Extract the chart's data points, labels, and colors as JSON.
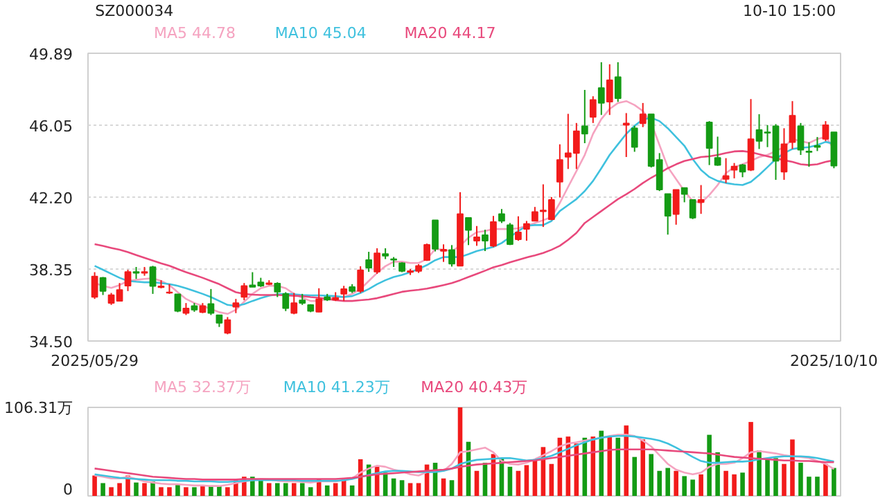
{
  "chart_data": [
    {
      "type": "candlestick",
      "title": "SZ000034",
      "annotations": [
        "10-10 15:00"
      ],
      "categories": [
        "2025/05/29",
        null,
        null,
        null,
        null,
        null,
        null,
        null,
        null,
        null,
        null,
        null,
        null,
        null,
        null,
        null,
        null,
        null,
        null,
        null,
        null,
        null,
        null,
        null,
        null,
        null,
        null,
        null,
        null,
        null,
        null,
        null,
        null,
        null,
        null,
        null,
        null,
        null,
        null,
        null,
        null,
        null,
        null,
        null,
        null,
        null,
        null,
        null,
        null,
        null,
        null,
        null,
        null,
        null,
        null,
        null,
        null,
        null,
        null,
        null,
        null,
        null,
        null,
        null,
        null,
        null,
        null,
        null,
        null,
        null,
        null,
        null,
        null,
        null,
        null,
        null,
        null,
        null,
        null,
        null,
        null,
        null,
        null,
        null,
        null,
        null,
        null,
        null,
        null,
        "2025/10/10"
      ],
      "ohlc": [
        [
          36.85,
          38.18,
          36.75,
          37.96
        ],
        [
          37.88,
          37.92,
          36.96,
          37.17
        ],
        [
          36.53,
          37.07,
          36.43,
          36.96
        ],
        [
          36.64,
          37.6,
          36.64,
          37.24
        ],
        [
          37.45,
          38.31,
          37.17,
          38.2
        ],
        [
          38.2,
          38.46,
          37.82,
          38.14
        ],
        [
          38.14,
          38.46,
          37.99,
          38.2
        ],
        [
          38.46,
          38.52,
          37.02,
          37.43
        ],
        [
          37.37,
          37.75,
          37.32,
          37.43
        ],
        [
          37.07,
          37.54,
          37.02,
          37.11
        ],
        [
          37.0,
          37.0,
          36.04,
          36.1
        ],
        [
          35.99,
          36.53,
          35.89,
          36.25
        ],
        [
          36.38,
          36.53,
          36.06,
          36.17
        ],
        [
          36.04,
          36.53,
          35.99,
          36.38
        ],
        [
          36.49,
          37.28,
          35.89,
          35.99
        ],
        [
          35.89,
          35.89,
          35.25,
          35.46
        ],
        [
          34.93,
          35.78,
          34.86,
          35.63
        ],
        [
          36.32,
          36.75,
          35.99,
          36.53
        ],
        [
          36.85,
          37.6,
          36.68,
          37.45
        ],
        [
          37.49,
          38.18,
          37.39,
          37.39
        ],
        [
          37.64,
          37.88,
          37.39,
          37.45
        ],
        [
          37.54,
          37.75,
          37.49,
          37.6
        ],
        [
          37.58,
          37.64,
          36.85,
          37.13
        ],
        [
          37.02,
          37.11,
          36.1,
          36.25
        ],
        [
          35.99,
          37.07,
          35.93,
          36.53
        ],
        [
          36.68,
          37.02,
          36.43,
          36.53
        ],
        [
          36.43,
          36.47,
          36.04,
          36.1
        ],
        [
          36.06,
          37.32,
          36.04,
          36.75
        ],
        [
          36.85,
          37.02,
          36.64,
          36.7
        ],
        [
          36.7,
          37.11,
          36.64,
          36.81
        ],
        [
          37.02,
          37.45,
          36.64,
          37.28
        ],
        [
          37.39,
          37.54,
          37.07,
          37.17
        ],
        [
          37.17,
          38.5,
          37.07,
          38.29
        ],
        [
          38.84,
          39.27,
          38.2,
          38.41
        ],
        [
          38.2,
          39.46,
          38.09,
          39.2
        ],
        [
          39.16,
          39.46,
          38.88,
          39.05
        ],
        [
          38.88,
          38.99,
          38.46,
          38.84
        ],
        [
          38.67,
          38.71,
          38.18,
          38.24
        ],
        [
          38.18,
          38.35,
          38.03,
          38.24
        ],
        [
          38.24,
          38.61,
          38.14,
          38.52
        ],
        [
          38.82,
          39.71,
          38.78,
          39.65
        ],
        [
          40.96,
          40.96,
          39.29,
          39.42
        ],
        [
          39.31,
          39.67,
          38.73,
          39.39
        ],
        [
          39.37,
          39.63,
          38.48,
          38.63
        ],
        [
          38.52,
          42.46,
          38.52,
          41.3
        ],
        [
          41.09,
          41.09,
          39.63,
          40.43
        ],
        [
          39.86,
          40.65,
          39.59,
          40.06
        ],
        [
          40.17,
          40.45,
          39.31,
          39.86
        ],
        [
          39.59,
          41.19,
          39.52,
          40.87
        ],
        [
          41.3,
          41.56,
          40.81,
          40.92
        ],
        [
          40.7,
          40.81,
          39.63,
          39.67
        ],
        [
          39.93,
          41.17,
          39.86,
          40.32
        ],
        [
          40.49,
          40.92,
          39.86,
          40.77
        ],
        [
          40.92,
          41.67,
          40.92,
          41.41
        ],
        [
          41.43,
          42.88,
          40.6,
          41.49
        ],
        [
          41.0,
          42.2,
          40.96,
          42.05
        ],
        [
          43.01,
          45.02,
          42.18,
          44.19
        ],
        [
          44.34,
          46.65,
          43.7,
          44.55
        ],
        [
          44.55,
          46.16,
          43.7,
          45.73
        ],
        [
          45.99,
          47.93,
          45.08,
          45.58
        ],
        [
          46.48,
          47.59,
          46.16,
          47.4
        ],
        [
          48.04,
          49.41,
          46.59,
          47.23
        ],
        [
          47.29,
          49.3,
          46.59,
          48.45
        ],
        [
          48.62,
          49.41,
          47.29,
          47.48
        ],
        [
          46.05,
          46.69,
          44.34,
          46.14
        ],
        [
          45.88,
          46.01,
          44.62,
          44.87
        ],
        [
          46.14,
          47.23,
          45.94,
          46.63
        ],
        [
          46.63,
          46.63,
          43.78,
          43.85
        ],
        [
          44.19,
          44.55,
          42.52,
          42.59
        ],
        [
          42.37,
          42.37,
          40.19,
          41.19
        ],
        [
          41.28,
          42.59,
          40.72,
          42.59
        ],
        [
          42.69,
          42.69,
          41.92,
          42.35
        ],
        [
          42.05,
          42.05,
          41.02,
          41.09
        ],
        [
          41.92,
          42.84,
          41.3,
          42.05
        ],
        [
          46.2,
          46.26,
          43.91,
          44.81
        ],
        [
          44.3,
          45.43,
          43.87,
          43.91
        ],
        [
          43.16,
          44.28,
          42.95,
          43.33
        ],
        [
          43.65,
          44.02,
          43.2,
          43.84
        ],
        [
          43.91,
          43.97,
          43.26,
          43.55
        ],
        [
          43.65,
          47.44,
          43.59,
          45.3
        ],
        [
          45.79,
          46.63,
          44.77,
          45.19
        ],
        [
          45.67,
          46.05,
          44.87,
          45.63
        ],
        [
          45.99,
          46.1,
          43.12,
          44.13
        ],
        [
          43.55,
          45.88,
          43.12,
          45.03
        ],
        [
          45.13,
          47.33,
          44.77,
          46.56
        ],
        [
          45.99,
          46.16,
          44.45,
          44.72
        ],
        [
          44.64,
          45.13,
          43.82,
          44.6
        ],
        [
          44.94,
          45.41,
          44.66,
          44.87
        ],
        [
          45.3,
          46.26,
          45.19,
          46.05
        ],
        [
          45.67,
          45.67,
          43.74,
          43.87
        ]
      ],
      "colors": [
        "#f21b1b",
        "#149b14",
        "#f21b1b",
        "#f21b1b",
        "#f21b1b",
        "#149b14",
        "#f21b1b",
        "#149b14",
        "#f21b1b",
        "#f21b1b",
        "#149b14",
        "#f21b1b",
        "#149b14",
        "#f21b1b",
        "#149b14",
        "#149b14",
        "#f21b1b",
        "#f21b1b",
        "#f21b1b",
        "#149b14",
        "#149b14",
        "#f21b1b",
        "#149b14",
        "#149b14",
        "#f21b1b",
        "#149b14",
        "#149b14",
        "#f21b1b",
        "#149b14",
        "#f21b1b",
        "#f21b1b",
        "#149b14",
        "#f21b1b",
        "#149b14",
        "#f21b1b",
        "#149b14",
        "#149b14",
        "#149b14",
        "#f21b1b",
        "#f21b1b",
        "#f21b1b",
        "#149b14",
        "#f21b1b",
        "#149b14",
        "#f21b1b",
        "#149b14",
        "#f21b1b",
        "#149b14",
        "#f21b1b",
        "#149b14",
        "#149b14",
        "#f21b1b",
        "#f21b1b",
        "#f21b1b",
        "#f21b1b",
        "#f21b1b",
        "#f21b1b",
        "#f21b1b",
        "#f21b1b",
        "#149b14",
        "#f21b1b",
        "#149b14",
        "#f21b1b",
        "#149b14",
        "#f21b1b",
        "#149b14",
        "#f21b1b",
        "#149b14",
        "#149b14",
        "#149b14",
        "#f21b1b",
        "#149b14",
        "#149b14",
        "#f21b1b",
        "#149b14",
        "#149b14",
        "#f21b1b",
        "#f21b1b",
        "#149b14",
        "#f21b1b",
        "#149b14",
        "#149b14",
        "#149b14",
        "#f21b1b",
        "#f21b1b",
        "#149b14",
        "#149b14",
        "#149b14",
        "#f21b1b",
        "#149b14"
      ],
      "series": [
        {
          "type": "line",
          "name": "MA5 44.78",
          "color": "#f5a3c0",
          "values": [
            37.6,
            37.45,
            37.34,
            37.49,
            37.71,
            37.77,
            37.82,
            37.86,
            37.71,
            37.49,
            37.11,
            36.75,
            36.53,
            36.38,
            36.21,
            36.04,
            35.95,
            36.17,
            36.6,
            37.02,
            37.32,
            37.45,
            37.45,
            37.32,
            37.02,
            36.81,
            36.64,
            36.64,
            36.75,
            36.85,
            36.85,
            37.02,
            37.28,
            37.71,
            38.14,
            38.5,
            38.74,
            38.74,
            38.67,
            38.67,
            38.88,
            39.42,
            39.38,
            39.31,
            39.59,
            40.02,
            40.32,
            40.38,
            40.49,
            40.49,
            40.49,
            40.53,
            40.66,
            40.81,
            40.96,
            41.13,
            41.88,
            42.74,
            43.59,
            44.45,
            45.58,
            46.37,
            46.91,
            47.23,
            47.33,
            47.12,
            46.8,
            46.16,
            44.98,
            43.8,
            43.16,
            42.52,
            41.99,
            41.88,
            42.31,
            42.84,
            43.48,
            43.8,
            43.95,
            44.13,
            44.34,
            44.45,
            44.66,
            44.87,
            45.3,
            45.19,
            45.09,
            45.3,
            45.41,
            44.78
          ]
        },
        {
          "type": "line",
          "name": "MA10 45.04",
          "color": "#3fc1de",
          "values": [
            38.52,
            38.31,
            38.09,
            37.88,
            37.71,
            37.67,
            37.64,
            37.64,
            37.6,
            37.54,
            37.45,
            37.32,
            37.17,
            37.02,
            36.85,
            36.64,
            36.43,
            36.38,
            36.47,
            36.64,
            36.79,
            36.92,
            37.0,
            37.02,
            37.0,
            36.96,
            36.94,
            36.94,
            36.92,
            36.9,
            36.85,
            36.9,
            37.07,
            37.28,
            37.54,
            37.75,
            37.92,
            38.03,
            38.18,
            38.35,
            38.56,
            38.82,
            38.99,
            38.99,
            38.99,
            39.14,
            39.31,
            39.42,
            39.53,
            39.74,
            40.06,
            40.38,
            40.66,
            40.7,
            40.7,
            40.92,
            41.45,
            41.77,
            42.09,
            42.52,
            43.06,
            43.74,
            44.45,
            45.02,
            45.58,
            46.01,
            46.35,
            46.44,
            46.26,
            45.88,
            45.41,
            44.94,
            44.23,
            43.65,
            43.27,
            43.06,
            42.95,
            42.88,
            42.84,
            43.01,
            43.38,
            43.8,
            44.23,
            44.55,
            44.77,
            44.83,
            44.87,
            44.98,
            45.15,
            45.04
          ]
        },
        {
          "type": "line",
          "name": "MA20 44.17",
          "color": "#e8497c",
          "values": [
            39.68,
            39.59,
            39.48,
            39.38,
            39.25,
            39.1,
            38.95,
            38.8,
            38.65,
            38.52,
            38.35,
            38.18,
            38.03,
            37.88,
            37.71,
            37.54,
            37.32,
            37.11,
            37.02,
            36.98,
            36.96,
            36.96,
            36.96,
            36.94,
            36.92,
            36.9,
            36.85,
            36.81,
            36.75,
            36.68,
            36.64,
            36.64,
            36.68,
            36.72,
            36.79,
            36.9,
            37.02,
            37.13,
            37.19,
            37.24,
            37.3,
            37.39,
            37.49,
            37.6,
            37.75,
            37.92,
            38.09,
            38.26,
            38.44,
            38.56,
            38.71,
            38.84,
            38.97,
            39.08,
            39.21,
            39.38,
            39.59,
            39.91,
            40.28,
            40.81,
            41.13,
            41.45,
            41.77,
            42.09,
            42.35,
            42.63,
            42.95,
            43.23,
            43.48,
            43.74,
            43.95,
            44.13,
            44.23,
            44.34,
            44.38,
            44.45,
            44.55,
            44.64,
            44.66,
            44.6,
            44.49,
            44.38,
            44.28,
            44.17,
            44.08,
            43.95,
            43.91,
            43.95,
            44.08,
            44.17
          ]
        }
      ],
      "ylim": [
        34.5,
        49.89
      ],
      "yticks": [
        {
          "value": 34.5,
          "label": "34.50"
        },
        38.35,
        {
          "value": 42.2,
          "label": "42.20"
        },
        46.05,
        49.89
      ],
      "grid": "y"
    },
    {
      "type": "bar",
      "categories": [
        null,
        null,
        null,
        null,
        null,
        null,
        null,
        null,
        null,
        null,
        null,
        null,
        null,
        null,
        null,
        null,
        null,
        null,
        null,
        null,
        null,
        null,
        null,
        null,
        null,
        null,
        null,
        null,
        null,
        null,
        null,
        null,
        null,
        null,
        null,
        null,
        null,
        null,
        null,
        null,
        null,
        null,
        null,
        null,
        null,
        null,
        null,
        null,
        null,
        null,
        null,
        null,
        null,
        null,
        null,
        null,
        null,
        null,
        null,
        null,
        null,
        null,
        null,
        null,
        null,
        null,
        null,
        null,
        null,
        null,
        null,
        null,
        null,
        null,
        null,
        null,
        null,
        null,
        null,
        null,
        null,
        null,
        null,
        null,
        null,
        null,
        null,
        null,
        null,
        null
      ],
      "values": [
        24.5,
        15.4,
        10.5,
        15.4,
        24.5,
        16.1,
        15.4,
        17.5,
        10.5,
        10.5,
        14.0,
        10.5,
        10.5,
        11.9,
        12.6,
        11.9,
        10.5,
        18.9,
        23.1,
        23.1,
        18.9,
        15.4,
        15.4,
        15.4,
        15.4,
        15.4,
        10.5,
        20.3,
        12.6,
        15.4,
        20.3,
        12.6,
        44.0,
        37.7,
        35.0,
        28.0,
        21.0,
        18.9,
        15.4,
        15.4,
        37.7,
        39.8,
        21.0,
        18.9,
        106.31,
        65.0,
        30.1,
        39.8,
        50.3,
        45.4,
        35.0,
        30.1,
        37.0,
        44.0,
        58.7,
        38.4,
        69.9,
        71.3,
        62.9,
        69.9,
        71.3,
        78.3,
        71.3,
        69.9,
        84.6,
        46.8,
        67.8,
        50.3,
        30.1,
        33.6,
        30.1,
        23.8,
        19.6,
        25.9,
        73.4,
        52.4,
        30.1,
        25.9,
        28.0,
        88.8,
        54.5,
        45.4,
        45.4,
        38.4,
        67.8,
        39.8,
        23.1,
        23.1,
        38.4,
        33.6
      ],
      "colors": [
        "#f21b1b",
        "#149b14",
        "#f21b1b",
        "#f21b1b",
        "#f21b1b",
        "#149b14",
        "#f21b1b",
        "#149b14",
        "#f21b1b",
        "#f21b1b",
        "#149b14",
        "#f21b1b",
        "#149b14",
        "#f21b1b",
        "#149b14",
        "#149b14",
        "#f21b1b",
        "#f21b1b",
        "#f21b1b",
        "#149b14",
        "#149b14",
        "#f21b1b",
        "#149b14",
        "#149b14",
        "#f21b1b",
        "#149b14",
        "#149b14",
        "#f21b1b",
        "#149b14",
        "#f21b1b",
        "#f21b1b",
        "#149b14",
        "#f21b1b",
        "#149b14",
        "#f21b1b",
        "#149b14",
        "#149b14",
        "#149b14",
        "#f21b1b",
        "#f21b1b",
        "#f21b1b",
        "#149b14",
        "#f21b1b",
        "#149b14",
        "#f21b1b",
        "#149b14",
        "#f21b1b",
        "#149b14",
        "#f21b1b",
        "#149b14",
        "#149b14",
        "#f21b1b",
        "#f21b1b",
        "#f21b1b",
        "#f21b1b",
        "#f21b1b",
        "#f21b1b",
        "#f21b1b",
        "#f21b1b",
        "#149b14",
        "#f21b1b",
        "#149b14",
        "#f21b1b",
        "#149b14",
        "#f21b1b",
        "#149b14",
        "#f21b1b",
        "#149b14",
        "#149b14",
        "#149b14",
        "#f21b1b",
        "#149b14",
        "#149b14",
        "#f21b1b",
        "#149b14",
        "#149b14",
        "#f21b1b",
        "#f21b1b",
        "#149b14",
        "#f21b1b",
        "#149b14",
        "#149b14",
        "#149b14",
        "#f21b1b",
        "#f21b1b",
        "#149b14",
        "#149b14",
        "#149b14",
        "#f21b1b",
        "#149b14"
      ],
      "series": [
        {
          "type": "line",
          "name": "MA5 32.37万",
          "color": "#f5a3c0",
          "values": [
            24.5,
            23.1,
            21.0,
            21.0,
            23.1,
            20.3,
            17.5,
            16.1,
            14.7,
            14.0,
            14.0,
            13.3,
            12.6,
            12.6,
            11.9,
            11.9,
            13.3,
            15.4,
            17.5,
            18.9,
            20.3,
            19.6,
            18.2,
            17.5,
            17.5,
            16.8,
            16.1,
            17.5,
            17.5,
            17.5,
            18.9,
            21.0,
            28.0,
            32.9,
            36.3,
            35.0,
            31.5,
            29.4,
            25.9,
            24.5,
            28.7,
            30.1,
            30.1,
            38.4,
            52.4,
            53.8,
            55.9,
            58.0,
            52.4,
            41.9,
            38.4,
            37.7,
            39.8,
            44.0,
            48.9,
            53.8,
            59.4,
            62.9,
            64.3,
            66.4,
            67.8,
            69.9,
            72.0,
            73.4,
            73.4,
            72.0,
            66.4,
            59.4,
            48.9,
            38.4,
            31.5,
            28.0,
            25.9,
            28.0,
            35.0,
            38.4,
            38.4,
            39.8,
            45.4,
            52.4,
            53.8,
            52.4,
            51.0,
            48.9,
            47.5,
            46.8,
            45.4,
            41.9,
            38.4,
            32.37
          ]
        },
        {
          "type": "line",
          "name": "MA10 41.23万",
          "color": "#3fc1de",
          "values": [
            25.9,
            24.5,
            23.1,
            21.7,
            21.0,
            20.3,
            19.6,
            18.9,
            18.9,
            18.9,
            18.2,
            18.2,
            17.5,
            17.5,
            17.5,
            16.8,
            16.8,
            17.5,
            18.2,
            18.9,
            18.9,
            18.9,
            18.9,
            18.9,
            18.9,
            18.2,
            18.2,
            18.2,
            18.2,
            18.2,
            18.9,
            20.3,
            23.1,
            25.2,
            27.3,
            29.4,
            30.1,
            30.1,
            29.4,
            28.7,
            28.7,
            28.7,
            30.1,
            32.9,
            38.4,
            41.2,
            43.3,
            44.0,
            44.7,
            45.4,
            45.4,
            44.0,
            42.6,
            43.3,
            45.4,
            48.2,
            52.4,
            56.6,
            60.8,
            64.3,
            67.8,
            69.9,
            71.3,
            72.0,
            72.0,
            71.3,
            69.9,
            68.5,
            66.4,
            62.9,
            58.0,
            52.4,
            46.8,
            41.9,
            39.8,
            39.8,
            40.5,
            41.2,
            41.2,
            41.9,
            44.0,
            45.4,
            46.8,
            47.5,
            47.5,
            47.5,
            46.8,
            45.4,
            43.3,
            41.23
          ]
        },
        {
          "type": "line",
          "name": "MA20 40.43万",
          "color": "#e8497c",
          "values": [
            32.9,
            31.5,
            30.1,
            28.7,
            27.3,
            25.9,
            24.5,
            23.1,
            22.4,
            21.7,
            21.0,
            20.3,
            20.3,
            19.6,
            19.6,
            19.6,
            19.6,
            19.6,
            20.3,
            20.3,
            20.3,
            20.3,
            20.3,
            20.3,
            20.3,
            20.3,
            20.3,
            20.3,
            20.3,
            20.3,
            21.0,
            21.7,
            23.1,
            24.5,
            25.9,
            26.6,
            27.3,
            28.0,
            28.7,
            29.4,
            30.1,
            30.8,
            31.5,
            32.9,
            35.0,
            36.3,
            37.7,
            38.4,
            39.1,
            39.8,
            40.5,
            41.2,
            41.9,
            42.6,
            44.0,
            45.4,
            46.8,
            48.2,
            49.6,
            51.0,
            52.4,
            53.8,
            55.2,
            55.9,
            55.9,
            55.9,
            55.9,
            55.9,
            55.2,
            54.5,
            53.8,
            53.1,
            52.4,
            51.7,
            51.0,
            49.6,
            48.2,
            46.8,
            46.1,
            45.4,
            44.7,
            44.0,
            43.3,
            42.6,
            42.6,
            41.9,
            41.9,
            41.2,
            40.5,
            40.43
          ]
        }
      ],
      "ylim": [
        0,
        106.31
      ],
      "yticks": [
        0,
        {
          "value": 106.31,
          "label": "106.31万"
        }
      ]
    }
  ]
}
